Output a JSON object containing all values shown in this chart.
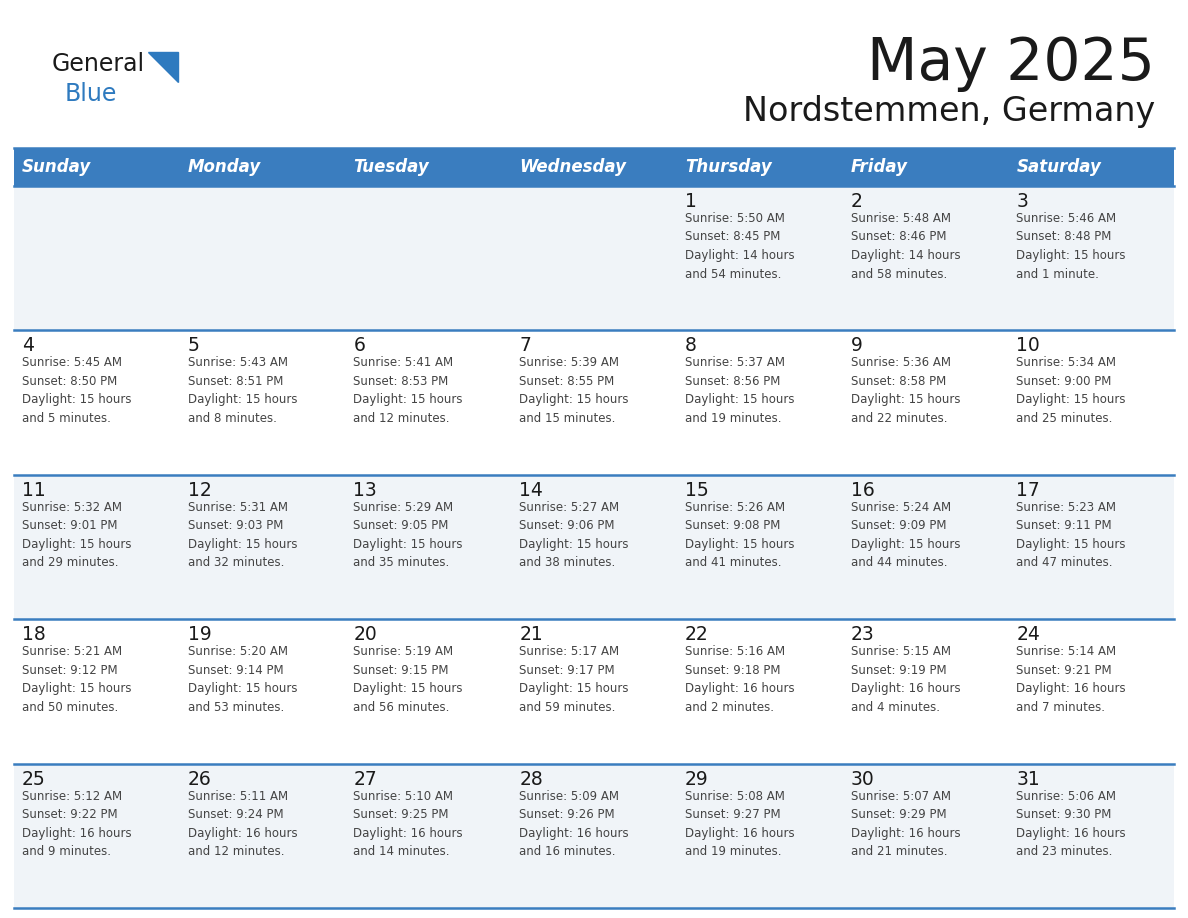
{
  "title": "May 2025",
  "subtitle": "Nordstemmen, Germany",
  "days_of_week": [
    "Sunday",
    "Monday",
    "Tuesday",
    "Wednesday",
    "Thursday",
    "Friday",
    "Saturday"
  ],
  "header_bg": "#3a7dbf",
  "header_text_color": "#ffffff",
  "cell_bg_light": "#f0f4f8",
  "cell_bg_white": "#ffffff",
  "cell_text_color": "#444444",
  "day_num_color": "#1a1a1a",
  "line_color": "#3a7dbf",
  "title_color": "#1a1a1a",
  "subtitle_color": "#1a1a1a",
  "logo_general_color": "#1a1a1a",
  "logo_blue_color": "#2e7abf",
  "calendar_data": [
    [
      {
        "day": null,
        "info": null
      },
      {
        "day": null,
        "info": null
      },
      {
        "day": null,
        "info": null
      },
      {
        "day": null,
        "info": null
      },
      {
        "day": "1",
        "info": "Sunrise: 5:50 AM\nSunset: 8:45 PM\nDaylight: 14 hours\nand 54 minutes."
      },
      {
        "day": "2",
        "info": "Sunrise: 5:48 AM\nSunset: 8:46 PM\nDaylight: 14 hours\nand 58 minutes."
      },
      {
        "day": "3",
        "info": "Sunrise: 5:46 AM\nSunset: 8:48 PM\nDaylight: 15 hours\nand 1 minute."
      }
    ],
    [
      {
        "day": "4",
        "info": "Sunrise: 5:45 AM\nSunset: 8:50 PM\nDaylight: 15 hours\nand 5 minutes."
      },
      {
        "day": "5",
        "info": "Sunrise: 5:43 AM\nSunset: 8:51 PM\nDaylight: 15 hours\nand 8 minutes."
      },
      {
        "day": "6",
        "info": "Sunrise: 5:41 AM\nSunset: 8:53 PM\nDaylight: 15 hours\nand 12 minutes."
      },
      {
        "day": "7",
        "info": "Sunrise: 5:39 AM\nSunset: 8:55 PM\nDaylight: 15 hours\nand 15 minutes."
      },
      {
        "day": "8",
        "info": "Sunrise: 5:37 AM\nSunset: 8:56 PM\nDaylight: 15 hours\nand 19 minutes."
      },
      {
        "day": "9",
        "info": "Sunrise: 5:36 AM\nSunset: 8:58 PM\nDaylight: 15 hours\nand 22 minutes."
      },
      {
        "day": "10",
        "info": "Sunrise: 5:34 AM\nSunset: 9:00 PM\nDaylight: 15 hours\nand 25 minutes."
      }
    ],
    [
      {
        "day": "11",
        "info": "Sunrise: 5:32 AM\nSunset: 9:01 PM\nDaylight: 15 hours\nand 29 minutes."
      },
      {
        "day": "12",
        "info": "Sunrise: 5:31 AM\nSunset: 9:03 PM\nDaylight: 15 hours\nand 32 minutes."
      },
      {
        "day": "13",
        "info": "Sunrise: 5:29 AM\nSunset: 9:05 PM\nDaylight: 15 hours\nand 35 minutes."
      },
      {
        "day": "14",
        "info": "Sunrise: 5:27 AM\nSunset: 9:06 PM\nDaylight: 15 hours\nand 38 minutes."
      },
      {
        "day": "15",
        "info": "Sunrise: 5:26 AM\nSunset: 9:08 PM\nDaylight: 15 hours\nand 41 minutes."
      },
      {
        "day": "16",
        "info": "Sunrise: 5:24 AM\nSunset: 9:09 PM\nDaylight: 15 hours\nand 44 minutes."
      },
      {
        "day": "17",
        "info": "Sunrise: 5:23 AM\nSunset: 9:11 PM\nDaylight: 15 hours\nand 47 minutes."
      }
    ],
    [
      {
        "day": "18",
        "info": "Sunrise: 5:21 AM\nSunset: 9:12 PM\nDaylight: 15 hours\nand 50 minutes."
      },
      {
        "day": "19",
        "info": "Sunrise: 5:20 AM\nSunset: 9:14 PM\nDaylight: 15 hours\nand 53 minutes."
      },
      {
        "day": "20",
        "info": "Sunrise: 5:19 AM\nSunset: 9:15 PM\nDaylight: 15 hours\nand 56 minutes."
      },
      {
        "day": "21",
        "info": "Sunrise: 5:17 AM\nSunset: 9:17 PM\nDaylight: 15 hours\nand 59 minutes."
      },
      {
        "day": "22",
        "info": "Sunrise: 5:16 AM\nSunset: 9:18 PM\nDaylight: 16 hours\nand 2 minutes."
      },
      {
        "day": "23",
        "info": "Sunrise: 5:15 AM\nSunset: 9:19 PM\nDaylight: 16 hours\nand 4 minutes."
      },
      {
        "day": "24",
        "info": "Sunrise: 5:14 AM\nSunset: 9:21 PM\nDaylight: 16 hours\nand 7 minutes."
      }
    ],
    [
      {
        "day": "25",
        "info": "Sunrise: 5:12 AM\nSunset: 9:22 PM\nDaylight: 16 hours\nand 9 minutes."
      },
      {
        "day": "26",
        "info": "Sunrise: 5:11 AM\nSunset: 9:24 PM\nDaylight: 16 hours\nand 12 minutes."
      },
      {
        "day": "27",
        "info": "Sunrise: 5:10 AM\nSunset: 9:25 PM\nDaylight: 16 hours\nand 14 minutes."
      },
      {
        "day": "28",
        "info": "Sunrise: 5:09 AM\nSunset: 9:26 PM\nDaylight: 16 hours\nand 16 minutes."
      },
      {
        "day": "29",
        "info": "Sunrise: 5:08 AM\nSunset: 9:27 PM\nDaylight: 16 hours\nand 19 minutes."
      },
      {
        "day": "30",
        "info": "Sunrise: 5:07 AM\nSunset: 9:29 PM\nDaylight: 16 hours\nand 21 minutes."
      },
      {
        "day": "31",
        "info": "Sunrise: 5:06 AM\nSunset: 9:30 PM\nDaylight: 16 hours\nand 23 minutes."
      }
    ]
  ]
}
